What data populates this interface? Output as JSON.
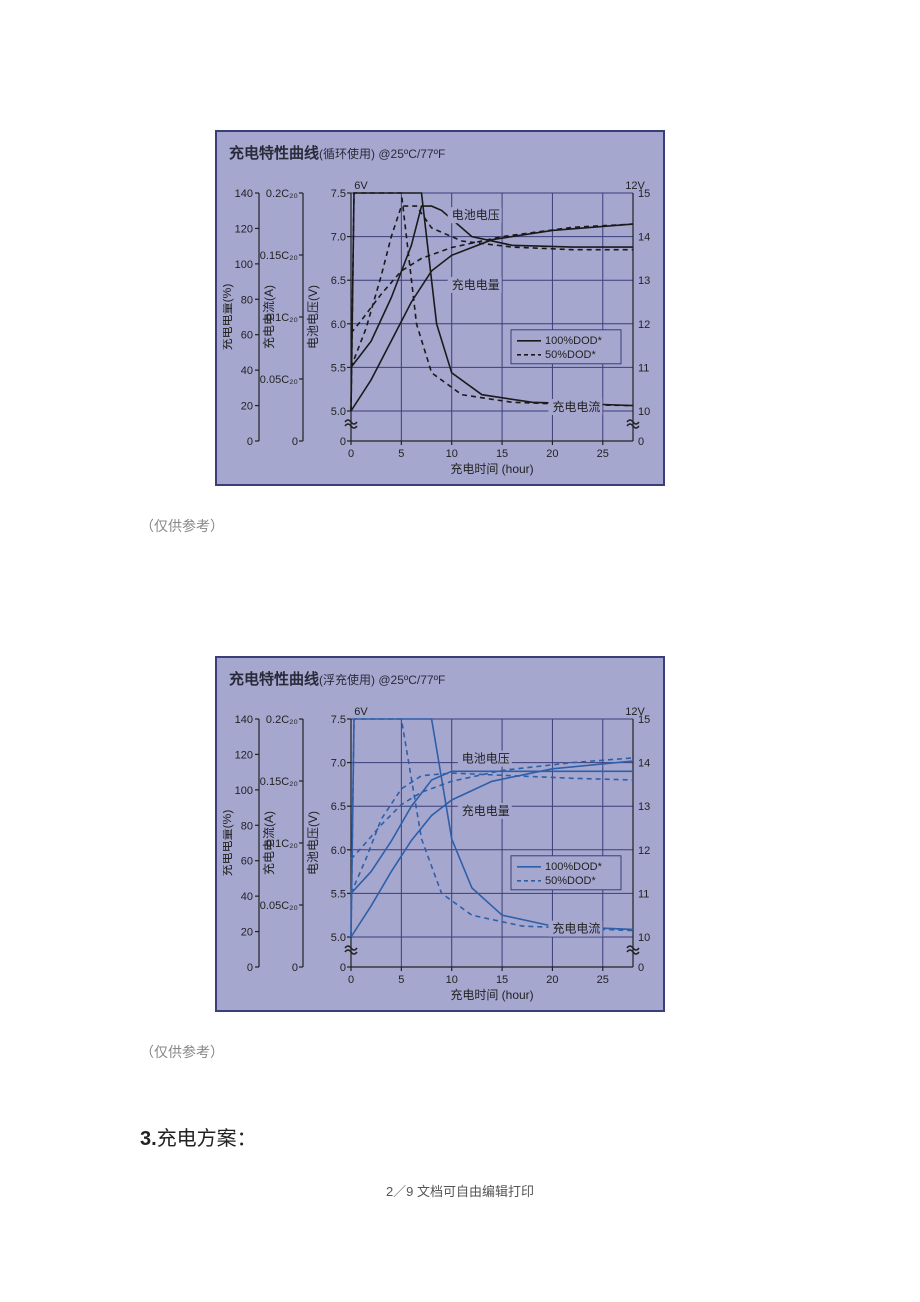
{
  "page": {
    "note": "（仅供参考）",
    "section_heading_num": "3.",
    "section_heading_text": "充电方案：",
    "footer_page": "2／9",
    "footer_text": "文档可自由编辑打印"
  },
  "chart1": {
    "title_main": "充电特性曲线",
    "title_sub": "(循环使用) @25ºC/77ºF",
    "line_color": "#1a1a1a",
    "bg_color": "#a6a7cf",
    "border_color": "#3a3e7a",
    "grid_color": "#3a3e7a",
    "axes": {
      "x": {
        "label": "充电时间 (hour)",
        "ticks": [
          0,
          5,
          10,
          15,
          20,
          25
        ],
        "min": 0,
        "max": 28
      },
      "y_charge_pct": {
        "label": "充电电量(%)",
        "ticks": [
          0,
          20,
          40,
          60,
          80,
          100,
          120,
          140
        ],
        "min": 0,
        "max": 140
      },
      "y_current": {
        "label": "充电电流(A)",
        "ticks_labels": [
          "0",
          "0.05C₂₀",
          "0.1C₂₀",
          "0.15C₂₀",
          "0.2C₂₀"
        ],
        "tick_vals": [
          0,
          0.05,
          0.1,
          0.15,
          0.2
        ]
      },
      "y_voltage_6v": {
        "label": "电池电压(V)",
        "header": "6V",
        "ticks": [
          0,
          5.0,
          5.5,
          6.0,
          6.5,
          7.0,
          7.5
        ]
      },
      "y_voltage_12v": {
        "header": "12V",
        "ticks": [
          0,
          10,
          11,
          12,
          13,
          14,
          15
        ]
      },
      "voltage_break": true
    },
    "legend": {
      "items": [
        {
          "label": "100%DOD*",
          "style": "solid"
        },
        {
          "label": "50%DOD*",
          "style": "dash"
        }
      ]
    },
    "inline_labels": [
      {
        "text": "电池电压",
        "x": 10,
        "y_v": 7.2
      },
      {
        "text": "充电电量",
        "x": 10,
        "y_v": 6.4
      },
      {
        "text": "充电电流",
        "x": 20,
        "y_v": 5.0
      }
    ],
    "curves": {
      "voltage_100": [
        [
          0,
          5.5
        ],
        [
          2,
          5.8
        ],
        [
          4,
          6.3
        ],
        [
          6,
          6.9
        ],
        [
          7,
          7.35
        ],
        [
          8,
          7.35
        ],
        [
          9,
          7.3
        ],
        [
          12,
          7.0
        ],
        [
          16,
          6.9
        ],
        [
          22,
          6.88
        ],
        [
          28,
          6.88
        ]
      ],
      "voltage_50": [
        [
          0,
          5.5
        ],
        [
          1.5,
          5.95
        ],
        [
          3,
          6.55
        ],
        [
          4,
          7.0
        ],
        [
          5,
          7.35
        ],
        [
          6.5,
          7.35
        ],
        [
          8,
          7.1
        ],
        [
          11,
          6.95
        ],
        [
          16,
          6.88
        ],
        [
          22,
          6.85
        ],
        [
          28,
          6.85
        ]
      ],
      "current_100": [
        [
          0,
          0
        ],
        [
          0.3,
          0.2
        ],
        [
          7,
          0.2
        ],
        [
          8.5,
          0.08
        ],
        [
          10,
          0.035
        ],
        [
          13,
          0.015
        ],
        [
          18,
          0.008
        ],
        [
          25,
          0.006
        ],
        [
          28,
          0.005
        ]
      ],
      "current_50": [
        [
          0,
          0
        ],
        [
          0.3,
          0.2
        ],
        [
          5,
          0.2
        ],
        [
          6.5,
          0.08
        ],
        [
          8,
          0.035
        ],
        [
          11,
          0.015
        ],
        [
          16,
          0.008
        ],
        [
          22,
          0.006
        ],
        [
          28,
          0.005
        ]
      ],
      "charge_100": [
        [
          0,
          0
        ],
        [
          2,
          20
        ],
        [
          4,
          45
        ],
        [
          6,
          70
        ],
        [
          8,
          90
        ],
        [
          10,
          100
        ],
        [
          14,
          110
        ],
        [
          20,
          116
        ],
        [
          28,
          120
        ]
      ],
      "charge_50": [
        [
          0,
          50
        ],
        [
          1,
          58
        ],
        [
          3,
          75
        ],
        [
          5,
          90
        ],
        [
          7,
          98
        ],
        [
          10,
          105
        ],
        [
          15,
          112
        ],
        [
          22,
          118
        ],
        [
          28,
          120
        ]
      ]
    }
  },
  "chart2": {
    "title_main": "充电特性曲线",
    "title_sub": "(浮充使用) @25ºC/77ºF",
    "line_color": "#2e5fa8",
    "bg_color": "#a6a7cf",
    "border_color": "#3a3e7a",
    "grid_color": "#3a3e7a",
    "axes": {
      "x": {
        "label": "充电时间 (hour)",
        "ticks": [
          0,
          5,
          10,
          15,
          20,
          25
        ],
        "min": 0,
        "max": 28
      },
      "y_charge_pct": {
        "label": "充电电量(%)",
        "ticks": [
          0,
          20,
          40,
          60,
          80,
          100,
          120,
          140
        ],
        "min": 0,
        "max": 140
      },
      "y_current": {
        "label": "充电电流(A)",
        "ticks_labels": [
          "0",
          "0.05C₂₀",
          "0.1C₂₀",
          "0.15C₂₀",
          "0.2C₂₀"
        ],
        "tick_vals": [
          0,
          0.05,
          0.1,
          0.15,
          0.2
        ]
      },
      "y_voltage_6v": {
        "label": "电池电压(V)",
        "header": "6V",
        "ticks": [
          0,
          5.0,
          5.5,
          6.0,
          6.5,
          7.0,
          7.5
        ]
      },
      "y_voltage_12v": {
        "header": "12V",
        "ticks": [
          0,
          10,
          11,
          12,
          13,
          14,
          15
        ]
      },
      "voltage_break": true
    },
    "legend": {
      "items": [
        {
          "label": "100%DOD*",
          "style": "solid"
        },
        {
          "label": "50%DOD*",
          "style": "dash"
        }
      ]
    },
    "inline_labels": [
      {
        "text": "电池电压",
        "x": 11,
        "y_v": 7.0
      },
      {
        "text": "充电电量",
        "x": 11,
        "y_v": 6.4
      },
      {
        "text": "充电电流",
        "x": 20,
        "y_v": 5.05
      }
    ],
    "curves": {
      "voltage_100": [
        [
          0,
          5.5
        ],
        [
          2,
          5.75
        ],
        [
          4,
          6.1
        ],
        [
          6,
          6.5
        ],
        [
          8,
          6.8
        ],
        [
          10,
          6.9
        ],
        [
          14,
          6.9
        ],
        [
          20,
          6.9
        ],
        [
          28,
          6.9
        ]
      ],
      "voltage_50": [
        [
          0,
          5.5
        ],
        [
          1.5,
          5.9
        ],
        [
          3,
          6.35
        ],
        [
          5,
          6.7
        ],
        [
          7,
          6.85
        ],
        [
          10,
          6.88
        ],
        [
          16,
          6.85
        ],
        [
          22,
          6.82
        ],
        [
          28,
          6.8
        ]
      ],
      "current_100": [
        [
          0,
          0
        ],
        [
          0.3,
          0.2
        ],
        [
          8,
          0.2
        ],
        [
          10,
          0.09
        ],
        [
          12,
          0.045
        ],
        [
          15,
          0.02
        ],
        [
          20,
          0.01
        ],
        [
          28,
          0.007
        ]
      ],
      "current_50": [
        [
          0,
          0
        ],
        [
          0.3,
          0.2
        ],
        [
          5,
          0.2
        ],
        [
          7,
          0.09
        ],
        [
          9,
          0.04
        ],
        [
          12,
          0.02
        ],
        [
          17,
          0.01
        ],
        [
          25,
          0.007
        ],
        [
          28,
          0.006
        ]
      ],
      "charge_100": [
        [
          0,
          0
        ],
        [
          2,
          20
        ],
        [
          4,
          42
        ],
        [
          6,
          62
        ],
        [
          8,
          78
        ],
        [
          10,
          88
        ],
        [
          14,
          100
        ],
        [
          20,
          108
        ],
        [
          28,
          113
        ]
      ],
      "charge_50": [
        [
          0,
          50
        ],
        [
          1,
          57
        ],
        [
          3,
          72
        ],
        [
          5,
          85
        ],
        [
          7,
          93
        ],
        [
          10,
          100
        ],
        [
          15,
          107
        ],
        [
          22,
          112
        ],
        [
          28,
          115
        ]
      ]
    }
  }
}
